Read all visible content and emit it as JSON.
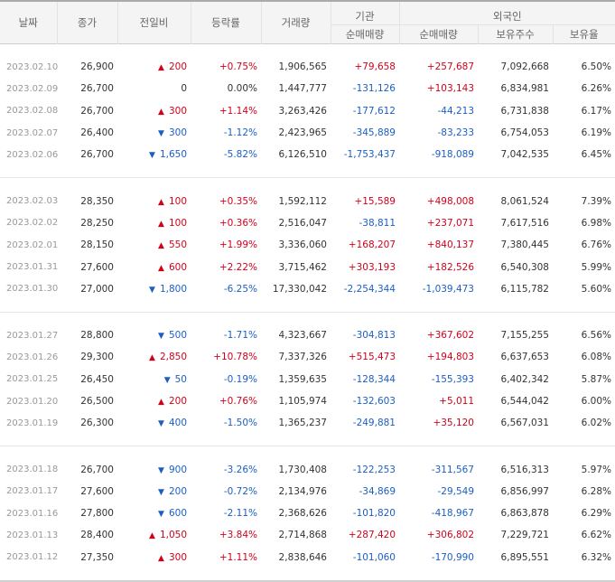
{
  "headers": {
    "date": "날짜",
    "close": "종가",
    "change": "전일비",
    "rate": "등락률",
    "volume": "거래량",
    "institution": "기관",
    "foreign": "외국인",
    "inst_net": "순매매량",
    "foreign_net": "순매매량",
    "holdings": "보유주수",
    "hold_ratio": "보유율"
  },
  "groups": [
    [
      {
        "date": "2023.02.10",
        "close": "26,900",
        "dir": "up",
        "change": "200",
        "rate": "+0.75%",
        "volume": "1,906,565",
        "inst": "+79,658",
        "foreign": "+257,687",
        "holdings": "7,092,668",
        "ratio": "6.50%"
      },
      {
        "date": "2023.02.09",
        "close": "26,700",
        "dir": "none",
        "change": "0",
        "rate": "0.00%",
        "volume": "1,447,777",
        "inst": "-131,126",
        "foreign": "+103,143",
        "holdings": "6,834,981",
        "ratio": "6.26%"
      },
      {
        "date": "2023.02.08",
        "close": "26,700",
        "dir": "up",
        "change": "300",
        "rate": "+1.14%",
        "volume": "3,263,426",
        "inst": "-177,612",
        "foreign": "-44,213",
        "holdings": "6,731,838",
        "ratio": "6.17%"
      },
      {
        "date": "2023.02.07",
        "close": "26,400",
        "dir": "down",
        "change": "300",
        "rate": "-1.12%",
        "volume": "2,423,965",
        "inst": "-345,889",
        "foreign": "-83,233",
        "holdings": "6,754,053",
        "ratio": "6.19%"
      },
      {
        "date": "2023.02.06",
        "close": "26,700",
        "dir": "down",
        "change": "1,650",
        "rate": "-5.82%",
        "volume": "6,126,510",
        "inst": "-1,753,437",
        "foreign": "-918,089",
        "holdings": "7,042,535",
        "ratio": "6.45%"
      }
    ],
    [
      {
        "date": "2023.02.03",
        "close": "28,350",
        "dir": "up",
        "change": "100",
        "rate": "+0.35%",
        "volume": "1,592,112",
        "inst": "+15,589",
        "foreign": "+498,008",
        "holdings": "8,061,524",
        "ratio": "7.39%"
      },
      {
        "date": "2023.02.02",
        "close": "28,250",
        "dir": "up",
        "change": "100",
        "rate": "+0.36%",
        "volume": "2,516,047",
        "inst": "-38,811",
        "foreign": "+237,071",
        "holdings": "7,617,516",
        "ratio": "6.98%"
      },
      {
        "date": "2023.02.01",
        "close": "28,150",
        "dir": "up",
        "change": "550",
        "rate": "+1.99%",
        "volume": "3,336,060",
        "inst": "+168,207",
        "foreign": "+840,137",
        "holdings": "7,380,445",
        "ratio": "6.76%"
      },
      {
        "date": "2023.01.31",
        "close": "27,600",
        "dir": "up",
        "change": "600",
        "rate": "+2.22%",
        "volume": "3,715,462",
        "inst": "+303,193",
        "foreign": "+182,526",
        "holdings": "6,540,308",
        "ratio": "5.99%"
      },
      {
        "date": "2023.01.30",
        "close": "27,000",
        "dir": "down",
        "change": "1,800",
        "rate": "-6.25%",
        "volume": "17,330,042",
        "inst": "-2,254,344",
        "foreign": "-1,039,473",
        "holdings": "6,115,782",
        "ratio": "5.60%"
      }
    ],
    [
      {
        "date": "2023.01.27",
        "close": "28,800",
        "dir": "down",
        "change": "500",
        "rate": "-1.71%",
        "volume": "4,323,667",
        "inst": "-304,813",
        "foreign": "+367,602",
        "holdings": "7,155,255",
        "ratio": "6.56%"
      },
      {
        "date": "2023.01.26",
        "close": "29,300",
        "dir": "up",
        "change": "2,850",
        "rate": "+10.78%",
        "volume": "7,337,326",
        "inst": "+515,473",
        "foreign": "+194,803",
        "holdings": "6,637,653",
        "ratio": "6.08%"
      },
      {
        "date": "2023.01.25",
        "close": "26,450",
        "dir": "down",
        "change": "50",
        "rate": "-0.19%",
        "volume": "1,359,635",
        "inst": "-128,344",
        "foreign": "-155,393",
        "holdings": "6,402,342",
        "ratio": "5.87%"
      },
      {
        "date": "2023.01.20",
        "close": "26,500",
        "dir": "up",
        "change": "200",
        "rate": "+0.76%",
        "volume": "1,105,974",
        "inst": "-132,603",
        "foreign": "+5,011",
        "holdings": "6,544,042",
        "ratio": "6.00%"
      },
      {
        "date": "2023.01.19",
        "close": "26,300",
        "dir": "down",
        "change": "400",
        "rate": "-1.50%",
        "volume": "1,365,237",
        "inst": "-249,881",
        "foreign": "+35,120",
        "holdings": "6,567,031",
        "ratio": "6.02%"
      }
    ],
    [
      {
        "date": "2023.01.18",
        "close": "26,700",
        "dir": "down",
        "change": "900",
        "rate": "-3.26%",
        "volume": "1,730,408",
        "inst": "-122,253",
        "foreign": "-311,567",
        "holdings": "6,516,313",
        "ratio": "5.97%"
      },
      {
        "date": "2023.01.17",
        "close": "27,600",
        "dir": "down",
        "change": "200",
        "rate": "-0.72%",
        "volume": "2,134,976",
        "inst": "-34,869",
        "foreign": "-29,549",
        "holdings": "6,856,997",
        "ratio": "6.28%"
      },
      {
        "date": "2023.01.16",
        "close": "27,800",
        "dir": "down",
        "change": "600",
        "rate": "-2.11%",
        "volume": "2,368,626",
        "inst": "-101,820",
        "foreign": "-418,967",
        "holdings": "6,863,878",
        "ratio": "6.29%"
      },
      {
        "date": "2023.01.13",
        "close": "28,400",
        "dir": "up",
        "change": "1,050",
        "rate": "+3.84%",
        "volume": "2,714,868",
        "inst": "+287,420",
        "foreign": "+306,802",
        "holdings": "7,229,721",
        "ratio": "6.62%"
      },
      {
        "date": "2023.01.12",
        "close": "27,350",
        "dir": "up",
        "change": "300",
        "rate": "+1.11%",
        "volume": "2,838,646",
        "inst": "-101,060",
        "foreign": "-170,990",
        "holdings": "6,895,551",
        "ratio": "6.32%"
      }
    ]
  ],
  "colors": {
    "up": "#d0021b",
    "down": "#1b5fc5",
    "header_bg": "#f4f4f4"
  },
  "icons": {
    "up": "triangle-up-icon",
    "down": "triangle-down-icon"
  }
}
